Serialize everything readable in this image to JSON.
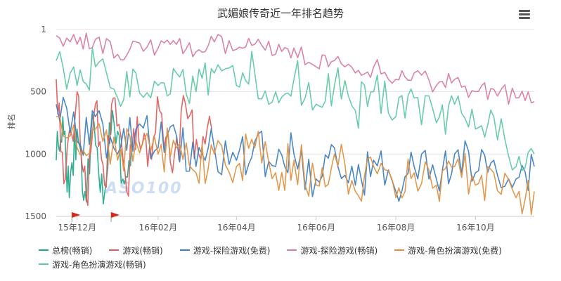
{
  "title": "武媚娘传奇近一年排名趋势",
  "ylabel": "排名",
  "watermark": "ASO100",
  "chart_data": {
    "type": "line",
    "title": "武媚娘传奇近一年排名趋势",
    "ylabel": "排名",
    "y_reversed": true,
    "ylim": [
      1,
      1500
    ],
    "y_ticks": [
      {
        "value": 1,
        "label": "1"
      },
      {
        "value": 500,
        "label": "500"
      },
      {
        "value": 1000,
        "label": "1000"
      },
      {
        "value": 1500,
        "label": "1500"
      }
    ],
    "x_range": [
      "2015-11-15",
      "2016-11-15"
    ],
    "x_ticks": [
      {
        "value": "2015-12-01",
        "label": "15年12月"
      },
      {
        "value": "2016-02-01",
        "label": "16年02月"
      },
      {
        "value": "2016-04-01",
        "label": "16年04月"
      },
      {
        "value": "2016-06-01",
        "label": "16年06月"
      },
      {
        "value": "2016-08-01",
        "label": "16年08月"
      },
      {
        "value": "2016-10-01",
        "label": "16年10月"
      }
    ],
    "flags": [
      "2015-11-27",
      "2015-12-27"
    ],
    "grid": true,
    "legend_position": "bottom",
    "series": [
      {
        "name": "总榜(畅销)",
        "color": "#1fa88a",
        "x": [
          "2015-11-15",
          "2015-11-20",
          "2015-11-25",
          "2015-12-01",
          "2015-12-07",
          "2015-12-14",
          "2015-12-21",
          "2015-12-28",
          "2016-01-05",
          "2016-01-12"
        ],
        "y": [
          1050,
          700,
          1350,
          800,
          1300,
          750,
          1400,
          650,
          1200,
          900
        ]
      },
      {
        "name": "游戏(畅销)",
        "color": "#e05a5a",
        "x": [
          "2015-11-15",
          "2015-11-22",
          "2015-12-01",
          "2015-12-08",
          "2015-12-15",
          "2015-12-22",
          "2015-12-30",
          "2016-01-08",
          "2016-01-16",
          "2016-01-24",
          "2016-02-02",
          "2016-02-12",
          "2016-02-22",
          "2016-03-03",
          "2016-03-13"
        ],
        "y": [
          400,
          1200,
          500,
          1350,
          600,
          1250,
          550,
          1300,
          700,
          1100,
          650,
          1150,
          600,
          1000,
          800
        ]
      },
      {
        "name": "游戏-探险游戏(免费)",
        "color": "#3d7ec0",
        "x": [
          "2015-11-15",
          "2015-12-01",
          "2015-12-15",
          "2016-01-01",
          "2016-01-15",
          "2016-02-01",
          "2016-02-15",
          "2016-03-01",
          "2016-03-15",
          "2016-04-01",
          "2016-04-15",
          "2016-05-01",
          "2016-05-15",
          "2016-06-01",
          "2016-06-15",
          "2016-07-01",
          "2016-07-15",
          "2016-08-01",
          "2016-08-15",
          "2016-09-01",
          "2016-09-15",
          "2016-10-01",
          "2016-10-15",
          "2016-11-01",
          "2016-11-15"
        ],
        "y": [
          600,
          900,
          700,
          1000,
          800,
          950,
          850,
          1100,
          950,
          1050,
          900,
          1100,
          1000,
          1200,
          950,
          1250,
          1050,
          1300,
          1100,
          1200,
          1000,
          1150,
          1050,
          1200,
          1100
        ]
      },
      {
        "name": "游戏-探险游戏(畅销)",
        "color": "#d97aa0",
        "x": [
          "2015-11-15",
          "2015-12-01",
          "2015-12-15",
          "2016-01-01",
          "2016-01-15",
          "2016-02-01",
          "2016-02-15",
          "2016-03-01",
          "2016-03-15",
          "2016-04-01",
          "2016-04-15",
          "2016-05-01",
          "2016-05-15",
          "2016-06-01",
          "2016-06-15",
          "2016-07-01",
          "2016-07-15",
          "2016-08-01",
          "2016-08-15",
          "2016-09-01",
          "2016-09-15",
          "2016-10-01",
          "2016-10-15",
          "2016-11-01",
          "2016-11-15"
        ],
        "y": [
          50,
          120,
          80,
          200,
          100,
          150,
          120,
          180,
          100,
          160,
          120,
          200,
          150,
          300,
          250,
          350,
          300,
          400,
          350,
          450,
          400,
          500,
          480,
          550,
          580
        ]
      },
      {
        "name": "游戏-角色扮演游戏(免费)",
        "color": "#e09040",
        "x": [
          "2015-11-15",
          "2015-12-01",
          "2015-12-15",
          "2016-01-01",
          "2016-01-15",
          "2016-02-01",
          "2016-02-15",
          "2016-03-01",
          "2016-03-15",
          "2016-04-01",
          "2016-04-15",
          "2016-05-01",
          "2016-05-15",
          "2016-06-01",
          "2016-06-15",
          "2016-07-01",
          "2016-07-15",
          "2016-08-01",
          "2016-08-15",
          "2016-09-01",
          "2016-09-15",
          "2016-10-01",
          "2016-10-15",
          "2016-11-01",
          "2016-11-15"
        ],
        "y": [
          700,
          950,
          800,
          1050,
          900,
          1000,
          950,
          1150,
          1000,
          1100,
          950,
          1150,
          1050,
          1250,
          1000,
          1300,
          1100,
          1350,
          1150,
          1250,
          1100,
          1250,
          1150,
          1350,
          1300
        ]
      },
      {
        "name": "游戏-角色扮演游戏(畅销)",
        "color": "#5ccaa0",
        "x": [
          "2015-11-15",
          "2015-12-01",
          "2015-12-15",
          "2016-01-01",
          "2016-01-15",
          "2016-02-01",
          "2016-02-15",
          "2016-03-01",
          "2016-03-15",
          "2016-04-01",
          "2016-04-15",
          "2016-05-01",
          "2016-05-15",
          "2016-06-01",
          "2016-06-15",
          "2016-07-01",
          "2016-07-15",
          "2016-08-01",
          "2016-08-15",
          "2016-09-01",
          "2016-09-15",
          "2016-10-01",
          "2016-10-15",
          "2016-11-01",
          "2016-11-15"
        ],
        "y": [
          250,
          450,
          300,
          550,
          350,
          450,
          350,
          500,
          350,
          450,
          350,
          500,
          400,
          600,
          450,
          650,
          500,
          700,
          550,
          750,
          600,
          800,
          700,
          1100,
          1000
        ]
      }
    ]
  }
}
